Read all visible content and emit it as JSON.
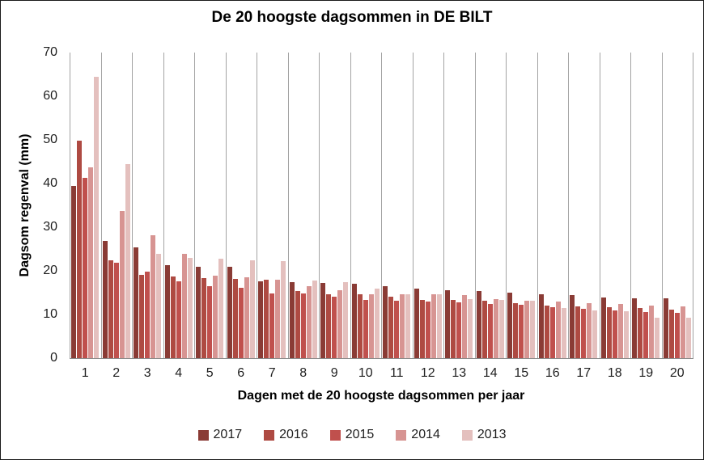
{
  "chart_data": {
    "type": "bar",
    "title": "De 20 hoogste dagsommen in DE BILT",
    "xlabel": "Dagen met de 20 hoogste dagsommen per jaar",
    "ylabel": "Dagsom regenval (mm)",
    "ylim": [
      0,
      70
    ],
    "yticks": [
      0,
      10,
      20,
      30,
      40,
      50,
      60,
      70
    ],
    "grid": "vertical category separators only, no horizontal gridlines",
    "legend_position": "bottom",
    "categories": [
      "1",
      "2",
      "3",
      "4",
      "5",
      "6",
      "7",
      "8",
      "9",
      "10",
      "11",
      "12",
      "13",
      "14",
      "15",
      "16",
      "17",
      "18",
      "19",
      "20"
    ],
    "series": [
      {
        "name": "2017",
        "color": "#8A3B35",
        "values": [
          39.5,
          26.8,
          25.3,
          21.3,
          21.0,
          20.9,
          17.6,
          17.5,
          17.3,
          17.0,
          16.5,
          16.0,
          15.5,
          15.3,
          15.0,
          14.6,
          14.4,
          13.9,
          13.8,
          13.8
        ]
      },
      {
        "name": "2016",
        "color": "#AE4A42",
        "values": [
          49.8,
          22.4,
          19.0,
          18.8,
          18.3,
          18.2,
          17.9,
          15.3,
          14.7,
          14.6,
          14.0,
          13.4,
          13.3,
          13.1,
          12.6,
          12.0,
          11.9,
          11.6,
          11.5,
          11.2
        ]
      },
      {
        "name": "2015",
        "color": "#C0504D",
        "values": [
          41.3,
          21.8,
          19.9,
          17.6,
          16.4,
          16.2,
          14.9,
          14.8,
          14.1,
          13.4,
          13.2,
          12.9,
          12.7,
          12.4,
          12.2,
          11.6,
          11.3,
          11.0,
          10.6,
          10.3
        ]
      },
      {
        "name": "2014",
        "color": "#D79492",
        "values": [
          43.8,
          33.7,
          28.1,
          23.9,
          18.9,
          18.6,
          17.9,
          16.4,
          15.6,
          14.7,
          14.6,
          14.6,
          14.5,
          13.5,
          13.2,
          12.9,
          12.6,
          12.5,
          12.1,
          11.9
        ]
      },
      {
        "name": "2013",
        "color": "#E4C0BE",
        "values": [
          64.4,
          44.5,
          23.9,
          22.9,
          22.8,
          22.4,
          22.3,
          17.7,
          17.4,
          15.9,
          14.7,
          14.6,
          13.5,
          13.4,
          13.2,
          11.5,
          11.0,
          10.7,
          9.3,
          9.2
        ]
      }
    ],
    "colors_meta": {
      "separator_line": "#A3A3A3",
      "axis_line": "#8A8A8A",
      "text": "#1F1F1F",
      "background": "#FFFFFF"
    }
  }
}
